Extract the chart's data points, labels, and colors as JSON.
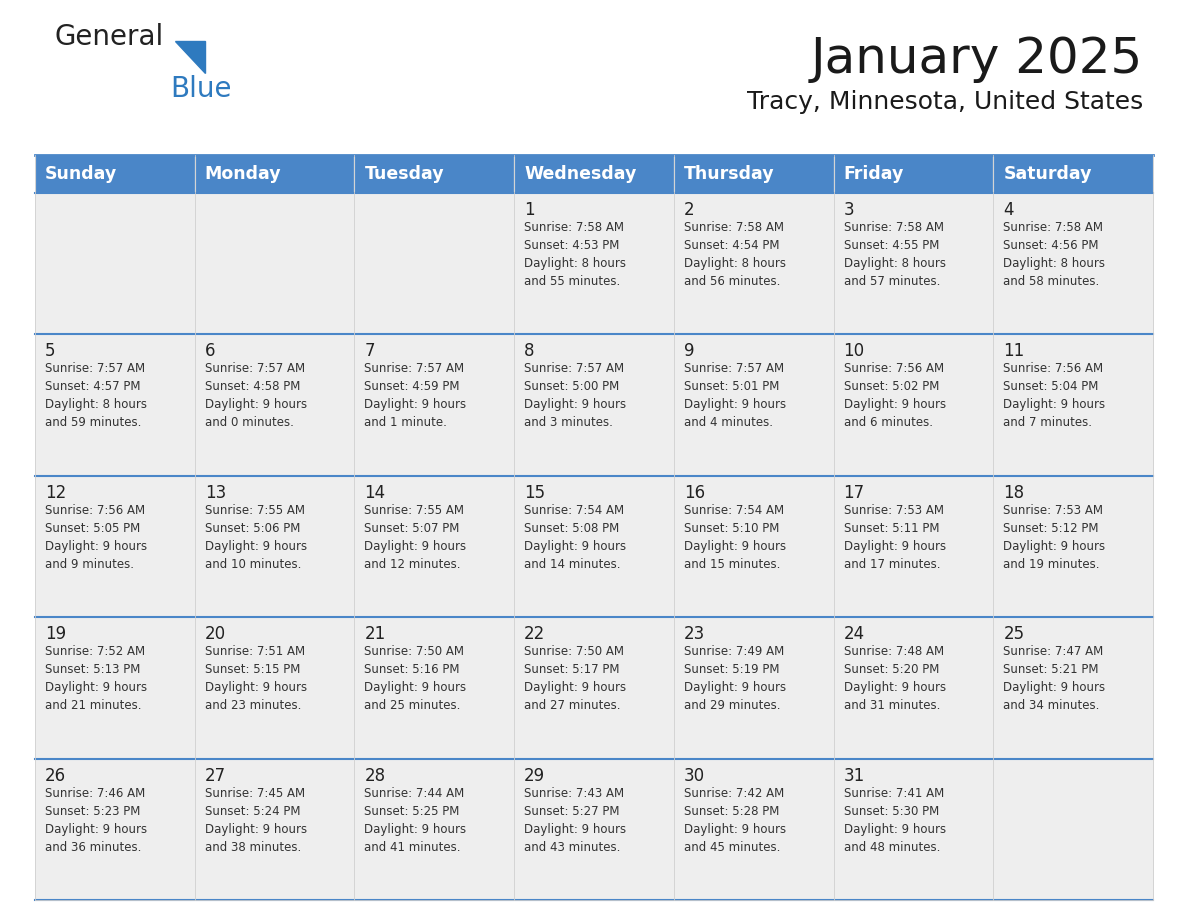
{
  "title": "January 2025",
  "subtitle": "Tracy, Minnesota, United States",
  "header_bg_color": "#4a86c8",
  "header_text_color": "#ffffff",
  "cell_bg_color": "#eeeeee",
  "text_color": "#333333",
  "line_color": "#4a86c8",
  "days_of_week": [
    "Sunday",
    "Monday",
    "Tuesday",
    "Wednesday",
    "Thursday",
    "Friday",
    "Saturday"
  ],
  "weeks": [
    [
      {
        "day": "",
        "info": ""
      },
      {
        "day": "",
        "info": ""
      },
      {
        "day": "",
        "info": ""
      },
      {
        "day": "1",
        "info": "Sunrise: 7:58 AM\nSunset: 4:53 PM\nDaylight: 8 hours\nand 55 minutes."
      },
      {
        "day": "2",
        "info": "Sunrise: 7:58 AM\nSunset: 4:54 PM\nDaylight: 8 hours\nand 56 minutes."
      },
      {
        "day": "3",
        "info": "Sunrise: 7:58 AM\nSunset: 4:55 PM\nDaylight: 8 hours\nand 57 minutes."
      },
      {
        "day": "4",
        "info": "Sunrise: 7:58 AM\nSunset: 4:56 PM\nDaylight: 8 hours\nand 58 minutes."
      }
    ],
    [
      {
        "day": "5",
        "info": "Sunrise: 7:57 AM\nSunset: 4:57 PM\nDaylight: 8 hours\nand 59 minutes."
      },
      {
        "day": "6",
        "info": "Sunrise: 7:57 AM\nSunset: 4:58 PM\nDaylight: 9 hours\nand 0 minutes."
      },
      {
        "day": "7",
        "info": "Sunrise: 7:57 AM\nSunset: 4:59 PM\nDaylight: 9 hours\nand 1 minute."
      },
      {
        "day": "8",
        "info": "Sunrise: 7:57 AM\nSunset: 5:00 PM\nDaylight: 9 hours\nand 3 minutes."
      },
      {
        "day": "9",
        "info": "Sunrise: 7:57 AM\nSunset: 5:01 PM\nDaylight: 9 hours\nand 4 minutes."
      },
      {
        "day": "10",
        "info": "Sunrise: 7:56 AM\nSunset: 5:02 PM\nDaylight: 9 hours\nand 6 minutes."
      },
      {
        "day": "11",
        "info": "Sunrise: 7:56 AM\nSunset: 5:04 PM\nDaylight: 9 hours\nand 7 minutes."
      }
    ],
    [
      {
        "day": "12",
        "info": "Sunrise: 7:56 AM\nSunset: 5:05 PM\nDaylight: 9 hours\nand 9 minutes."
      },
      {
        "day": "13",
        "info": "Sunrise: 7:55 AM\nSunset: 5:06 PM\nDaylight: 9 hours\nand 10 minutes."
      },
      {
        "day": "14",
        "info": "Sunrise: 7:55 AM\nSunset: 5:07 PM\nDaylight: 9 hours\nand 12 minutes."
      },
      {
        "day": "15",
        "info": "Sunrise: 7:54 AM\nSunset: 5:08 PM\nDaylight: 9 hours\nand 14 minutes."
      },
      {
        "day": "16",
        "info": "Sunrise: 7:54 AM\nSunset: 5:10 PM\nDaylight: 9 hours\nand 15 minutes."
      },
      {
        "day": "17",
        "info": "Sunrise: 7:53 AM\nSunset: 5:11 PM\nDaylight: 9 hours\nand 17 minutes."
      },
      {
        "day": "18",
        "info": "Sunrise: 7:53 AM\nSunset: 5:12 PM\nDaylight: 9 hours\nand 19 minutes."
      }
    ],
    [
      {
        "day": "19",
        "info": "Sunrise: 7:52 AM\nSunset: 5:13 PM\nDaylight: 9 hours\nand 21 minutes."
      },
      {
        "day": "20",
        "info": "Sunrise: 7:51 AM\nSunset: 5:15 PM\nDaylight: 9 hours\nand 23 minutes."
      },
      {
        "day": "21",
        "info": "Sunrise: 7:50 AM\nSunset: 5:16 PM\nDaylight: 9 hours\nand 25 minutes."
      },
      {
        "day": "22",
        "info": "Sunrise: 7:50 AM\nSunset: 5:17 PM\nDaylight: 9 hours\nand 27 minutes."
      },
      {
        "day": "23",
        "info": "Sunrise: 7:49 AM\nSunset: 5:19 PM\nDaylight: 9 hours\nand 29 minutes."
      },
      {
        "day": "24",
        "info": "Sunrise: 7:48 AM\nSunset: 5:20 PM\nDaylight: 9 hours\nand 31 minutes."
      },
      {
        "day": "25",
        "info": "Sunrise: 7:47 AM\nSunset: 5:21 PM\nDaylight: 9 hours\nand 34 minutes."
      }
    ],
    [
      {
        "day": "26",
        "info": "Sunrise: 7:46 AM\nSunset: 5:23 PM\nDaylight: 9 hours\nand 36 minutes."
      },
      {
        "day": "27",
        "info": "Sunrise: 7:45 AM\nSunset: 5:24 PM\nDaylight: 9 hours\nand 38 minutes."
      },
      {
        "day": "28",
        "info": "Sunrise: 7:44 AM\nSunset: 5:25 PM\nDaylight: 9 hours\nand 41 minutes."
      },
      {
        "day": "29",
        "info": "Sunrise: 7:43 AM\nSunset: 5:27 PM\nDaylight: 9 hours\nand 43 minutes."
      },
      {
        "day": "30",
        "info": "Sunrise: 7:42 AM\nSunset: 5:28 PM\nDaylight: 9 hours\nand 45 minutes."
      },
      {
        "day": "31",
        "info": "Sunrise: 7:41 AM\nSunset: 5:30 PM\nDaylight: 9 hours\nand 48 minutes."
      },
      {
        "day": "",
        "info": ""
      }
    ]
  ]
}
